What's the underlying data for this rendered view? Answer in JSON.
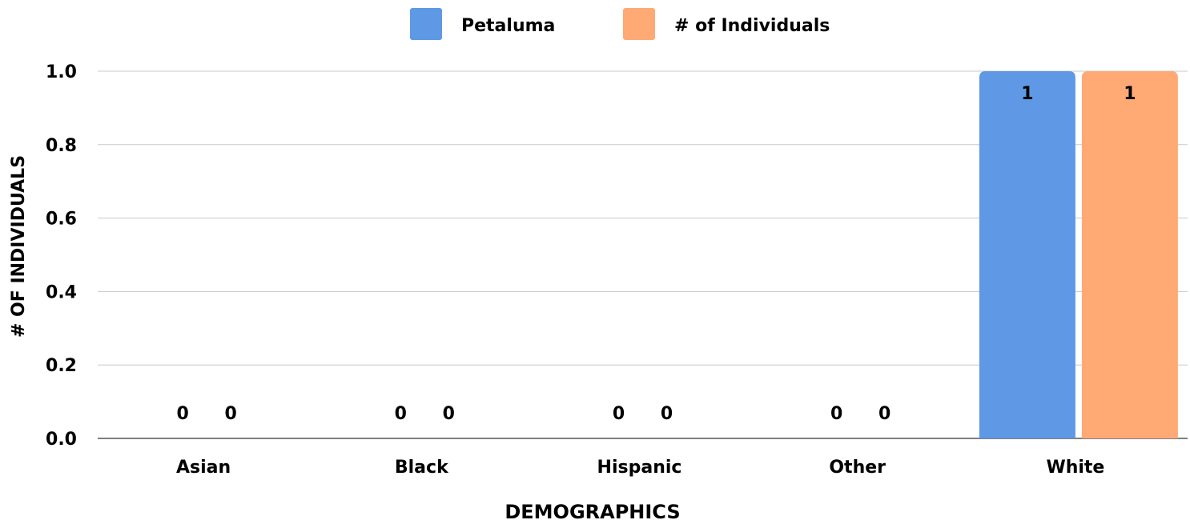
{
  "chart_data": {
    "type": "bar",
    "title": "",
    "xlabel": "DEMOGRAPHICS",
    "ylabel": "# OF INDIVIDUALS",
    "categories": [
      "Asian",
      "Black",
      "Hispanic",
      "Other",
      "White"
    ],
    "series": [
      {
        "name": "Petaluma",
        "color": "#5f98e4",
        "values": [
          0,
          0,
          0,
          0,
          1
        ]
      },
      {
        "name": "# of Individuals",
        "color": "#ffa975",
        "values": [
          0,
          0,
          0,
          0,
          1
        ]
      }
    ],
    "ylim": [
      0,
      1
    ],
    "yticks": [
      "0.0",
      "0.2",
      "0.4",
      "0.6",
      "0.8",
      "1.0"
    ],
    "data_labels": [
      [
        "0",
        "0",
        "0",
        "0",
        "1"
      ],
      [
        "0",
        "0",
        "0",
        "0",
        "1"
      ]
    ],
    "grid": true,
    "legend_position": "top"
  }
}
